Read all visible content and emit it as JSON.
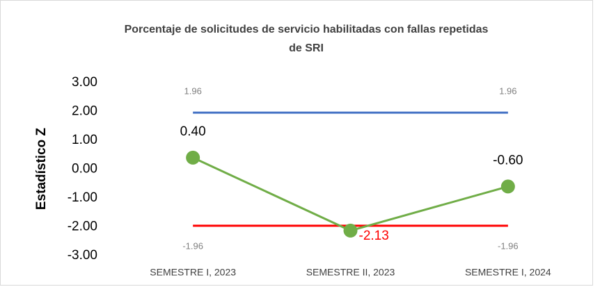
{
  "chart_data": {
    "type": "line",
    "title": "Porcentaje de solicitudes de servicio habilitadas con fallas repetidas de SRI",
    "y_label": "Estadístico Z",
    "categories": [
      "SEMESTRE I, 2023",
      "SEMESTRE II, 2023",
      "SEMESTRE I, 2024"
    ],
    "series": [
      {
        "color": "#4472c4",
        "values": [
          1.96,
          1.96,
          1.96
        ],
        "value_labels": [
          "1.96",
          null,
          "1.96"
        ],
        "label_color": "#7f7f7f",
        "markers": false
      },
      {
        "color": "#ff0000",
        "values": [
          -1.96,
          -1.96,
          -1.96
        ],
        "value_labels": [
          "-1.96",
          null,
          "-1.96"
        ],
        "label_color": "#7f7f7f",
        "markers": false
      },
      {
        "color": "#70ad47",
        "values": [
          0.4,
          -2.13,
          -0.6
        ],
        "value_labels": [
          "0.40",
          "-2.13",
          "-0.60"
        ],
        "label_colors": [
          "#000000",
          "#ff0000",
          "#000000"
        ],
        "markers": true
      }
    ],
    "ylim": [
      -3,
      3
    ],
    "yticks": [
      {
        "value": 3,
        "label": "3.00"
      },
      {
        "value": 2,
        "label": "2.00"
      },
      {
        "value": 1,
        "label": "1.00"
      },
      {
        "value": 0,
        "label": "0.00"
      },
      {
        "value": -1,
        "label": "-1.00"
      },
      {
        "value": -2,
        "label": "-2.00"
      },
      {
        "value": -3,
        "label": "-3.00"
      }
    ],
    "grid": false
  }
}
